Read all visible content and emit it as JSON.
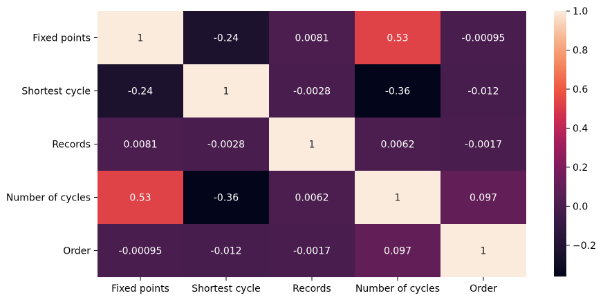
{
  "chart_data": {
    "type": "heatmap",
    "title": "",
    "xlabel": "",
    "ylabel": "",
    "x_categories": [
      "Fixed points",
      "Shortest cycle",
      "Records",
      "Number of cycles",
      "Order"
    ],
    "y_categories": [
      "Fixed points",
      "Shortest cycle",
      "Records",
      "Number of cycles",
      "Order"
    ],
    "values": [
      [
        1,
        -0.24,
        0.0081,
        0.53,
        -0.00095
      ],
      [
        -0.24,
        1,
        -0.0028,
        -0.36,
        -0.012
      ],
      [
        0.0081,
        -0.0028,
        1,
        0.0062,
        -0.0017
      ],
      [
        0.53,
        -0.36,
        0.0062,
        1,
        0.097
      ],
      [
        -0.00095,
        -0.012,
        -0.0017,
        0.097,
        1
      ]
    ],
    "annotations": [
      [
        "1",
        "-0.24",
        "0.0081",
        "0.53",
        "-0.00095"
      ],
      [
        "-0.24",
        "1",
        "-0.0028",
        "-0.36",
        "-0.012"
      ],
      [
        "0.0081",
        "-0.0028",
        "1",
        "0.0062",
        "-0.0017"
      ],
      [
        "0.53",
        "-0.36",
        "0.0062",
        "1",
        "0.097"
      ],
      [
        "-0.00095",
        "-0.012",
        "-0.0017",
        "0.097",
        "1"
      ]
    ],
    "colorbar": {
      "vmin": -0.36,
      "vmax": 1.0,
      "colormap": "rocket",
      "ticks": [
        -0.2,
        0.0,
        0.2,
        0.4,
        0.6,
        0.8,
        1.0
      ],
      "tick_labels": [
        "−0.2",
        "0.0",
        "0.2",
        "0.4",
        "0.6",
        "0.8",
        "1.0"
      ]
    }
  }
}
